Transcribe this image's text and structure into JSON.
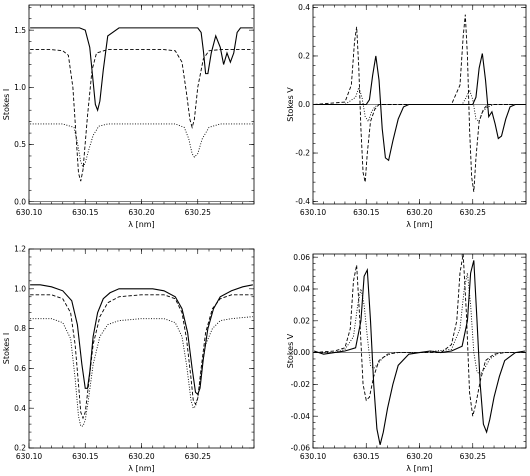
{
  "chart_data": [
    {
      "type": "line",
      "xlabel": "λ  [nm]",
      "ylabel": "Stokes I",
      "xlim": [
        630.1,
        630.3
      ],
      "ylim": [
        -0.02,
        1.72
      ],
      "xticks": [
        "630.10",
        "630.15",
        "630.20",
        "630.25"
      ],
      "xtick_values": [
        630.1,
        630.15,
        630.2,
        630.25
      ],
      "yticks": [
        "0.0",
        "0.5",
        "1.0",
        "1.5"
      ],
      "ytick_values": [
        0.0,
        0.5,
        1.0,
        1.5
      ],
      "grid": false,
      "series": [
        {
          "style": "solid",
          "x": [
            630.101,
            630.13,
            630.145,
            630.15,
            630.154,
            630.157,
            630.159,
            630.161,
            630.163,
            630.166,
            630.17,
            630.18,
            630.2,
            630.22,
            630.24,
            630.25,
            630.253,
            630.255,
            630.257,
            630.259,
            630.262,
            630.266,
            630.27,
            630.273,
            630.276,
            630.279,
            630.282,
            630.285,
            630.288,
            630.292,
            630.296,
            630.299
          ],
          "values": [
            1.52,
            1.52,
            1.52,
            1.5,
            1.35,
            1.05,
            0.85,
            0.8,
            0.88,
            1.15,
            1.45,
            1.52,
            1.52,
            1.52,
            1.52,
            1.52,
            1.48,
            1.32,
            1.12,
            1.12,
            1.3,
            1.45,
            1.35,
            1.2,
            1.3,
            1.22,
            1.3,
            1.48,
            1.52,
            1.52,
            1.52,
            1.52
          ]
        },
        {
          "style": "dashed",
          "x": [
            630.101,
            630.12,
            630.13,
            630.135,
            630.139,
            630.142,
            630.144,
            630.146,
            630.148,
            630.152,
            630.156,
            630.16,
            630.17,
            630.2,
            630.22,
            630.23,
            630.236,
            630.24,
            630.243,
            630.245,
            630.247,
            630.25,
            630.255,
            630.26,
            630.27,
            630.29,
            630.299
          ],
          "values": [
            1.33,
            1.33,
            1.32,
            1.28,
            1.0,
            0.55,
            0.25,
            0.18,
            0.28,
            0.75,
            1.15,
            1.3,
            1.33,
            1.33,
            1.33,
            1.32,
            1.22,
            0.95,
            0.72,
            0.65,
            0.72,
            1.0,
            1.25,
            1.32,
            1.33,
            1.33,
            1.33
          ]
        },
        {
          "style": "dotted",
          "x": [
            630.101,
            630.13,
            630.14,
            630.143,
            630.146,
            630.148,
            630.15,
            630.153,
            630.157,
            630.162,
            630.17,
            630.2,
            630.23,
            630.238,
            630.242,
            630.245,
            630.247,
            630.25,
            630.254,
            630.26,
            630.27,
            630.29,
            630.299
          ],
          "values": [
            0.68,
            0.68,
            0.65,
            0.52,
            0.35,
            0.3,
            0.34,
            0.45,
            0.58,
            0.66,
            0.68,
            0.68,
            0.68,
            0.65,
            0.55,
            0.42,
            0.39,
            0.42,
            0.55,
            0.65,
            0.68,
            0.68,
            0.68
          ]
        }
      ]
    },
    {
      "type": "line",
      "xlabel": "λ  [nm]",
      "ylabel": "Stokes V",
      "xlim": [
        630.1,
        630.3
      ],
      "ylim": [
        -0.41,
        0.41
      ],
      "xticks": [
        "630.10",
        "630.15",
        "630.20",
        "630.25"
      ],
      "xtick_values": [
        630.1,
        630.15,
        630.2,
        630.25
      ],
      "yticks": [
        "-0.4",
        "-0.2",
        "0.0",
        "0.2",
        "0.4"
      ],
      "ytick_values": [
        -0.4,
        -0.2,
        0.0,
        0.2,
        0.4
      ],
      "grid": false,
      "series": [
        {
          "style": "solid",
          "x": [
            630.101,
            630.15,
            630.153,
            630.156,
            630.159,
            630.162,
            630.165,
            630.168,
            630.171,
            630.175,
            630.18,
            630.185,
            630.19,
            630.24,
            630.25,
            630.253,
            630.256,
            630.259,
            630.262,
            630.265,
            630.268,
            630.271,
            630.274,
            630.277,
            630.281,
            630.285,
            630.29,
            630.299
          ],
          "values": [
            0.0,
            0.0,
            0.02,
            0.12,
            0.2,
            0.1,
            -0.1,
            -0.22,
            -0.23,
            -0.15,
            -0.06,
            -0.01,
            0.0,
            0.0,
            0.0,
            0.03,
            0.15,
            0.21,
            0.1,
            -0.05,
            -0.03,
            -0.08,
            -0.14,
            -0.13,
            -0.06,
            -0.01,
            0.0,
            0.0
          ]
        },
        {
          "style": "dashed",
          "x": [
            630.101,
            630.13,
            630.136,
            630.139,
            630.141,
            630.143,
            630.145,
            630.147,
            630.149,
            630.151,
            630.154,
            630.158,
            630.162,
            630.17,
            630.23,
            630.238,
            630.241,
            630.243,
            630.245,
            630.247,
            630.249,
            630.251,
            630.253,
            630.256,
            630.26,
            630.264,
            630.27,
            630.299
          ],
          "values": [
            0.0,
            0.01,
            0.08,
            0.26,
            0.32,
            0.15,
            -0.1,
            -0.28,
            -0.32,
            -0.2,
            -0.07,
            -0.02,
            0.0,
            0.0,
            0.0,
            0.08,
            0.28,
            0.37,
            0.2,
            -0.1,
            -0.3,
            -0.36,
            -0.22,
            -0.07,
            -0.02,
            0.0,
            0.0,
            0.0
          ]
        },
        {
          "style": "dotted",
          "x": [
            630.101,
            630.13,
            630.14,
            630.143,
            630.146,
            630.149,
            630.152,
            630.155,
            630.158,
            630.162,
            630.17,
            630.24,
            630.244,
            630.247,
            630.25,
            630.253,
            630.256,
            630.259,
            630.264,
            630.27,
            630.299
          ],
          "values": [
            0.0,
            0.0,
            0.03,
            0.07,
            0.03,
            -0.05,
            -0.07,
            -0.03,
            -0.01,
            0.0,
            0.0,
            0.0,
            0.03,
            0.06,
            0.02,
            -0.06,
            -0.07,
            -0.03,
            -0.01,
            0.0,
            0.0
          ]
        }
      ]
    },
    {
      "type": "line",
      "xlabel": "λ  [nm]",
      "ylabel": "Stokes I",
      "xlim": [
        630.1,
        630.3
      ],
      "ylim": [
        0.2,
        1.2
      ],
      "xticks": [
        "630.10",
        "630.15",
        "630.20",
        "630.25"
      ],
      "xtick_values": [
        630.1,
        630.15,
        630.2,
        630.25
      ],
      "yticks": [
        "0.2",
        "0.4",
        "0.6",
        "0.8",
        "1.0",
        "1.2"
      ],
      "ytick_values": [
        0.2,
        0.4,
        0.6,
        0.8,
        1.0,
        1.2
      ],
      "grid": false,
      "series": [
        {
          "style": "solid",
          "x": [
            630.101,
            630.11,
            630.12,
            630.13,
            630.138,
            630.143,
            630.147,
            630.15,
            630.152,
            630.154,
            630.157,
            630.161,
            630.166,
            630.172,
            630.18,
            630.19,
            630.2,
            630.21,
            630.22,
            630.23,
            630.236,
            630.241,
            630.245,
            630.248,
            630.25,
            630.252,
            630.255,
            630.259,
            630.264,
            630.27,
            630.28,
            630.29,
            630.299
          ],
          "values": [
            1.02,
            1.02,
            1.01,
            0.99,
            0.94,
            0.82,
            0.62,
            0.5,
            0.5,
            0.58,
            0.76,
            0.88,
            0.95,
            0.98,
            1.0,
            1.0,
            1.0,
            1.0,
            0.99,
            0.96,
            0.9,
            0.78,
            0.6,
            0.48,
            0.47,
            0.5,
            0.65,
            0.8,
            0.9,
            0.96,
            0.99,
            1.01,
            1.02
          ]
        },
        {
          "style": "dashed",
          "x": [
            630.101,
            630.12,
            630.13,
            630.137,
            630.141,
            630.144,
            630.146,
            630.148,
            630.15,
            630.153,
            630.157,
            630.163,
            630.17,
            630.18,
            630.2,
            630.22,
            630.23,
            630.236,
            630.24,
            630.244,
            630.246,
            630.248,
            630.25,
            630.253,
            630.257,
            630.263,
            630.27,
            630.28,
            630.299
          ],
          "values": [
            0.97,
            0.97,
            0.95,
            0.88,
            0.72,
            0.52,
            0.38,
            0.35,
            0.38,
            0.52,
            0.72,
            0.86,
            0.93,
            0.96,
            0.97,
            0.97,
            0.95,
            0.88,
            0.75,
            0.55,
            0.44,
            0.42,
            0.45,
            0.6,
            0.78,
            0.9,
            0.95,
            0.97,
            0.97
          ]
        },
        {
          "style": "dotted",
          "x": [
            630.101,
            630.12,
            630.13,
            630.137,
            630.141,
            630.144,
            630.146,
            630.148,
            630.15,
            630.153,
            630.157,
            630.163,
            630.17,
            630.18,
            630.2,
            630.22,
            630.23,
            630.236,
            630.24,
            630.244,
            630.246,
            630.248,
            630.25,
            630.253,
            630.257,
            630.263,
            630.27,
            630.28,
            630.299
          ],
          "values": [
            0.85,
            0.85,
            0.83,
            0.75,
            0.55,
            0.36,
            0.31,
            0.31,
            0.34,
            0.45,
            0.62,
            0.76,
            0.82,
            0.84,
            0.85,
            0.85,
            0.83,
            0.76,
            0.62,
            0.44,
            0.4,
            0.41,
            0.45,
            0.58,
            0.72,
            0.8,
            0.84,
            0.85,
            0.86
          ]
        }
      ]
    },
    {
      "type": "line",
      "xlabel": "λ  [nm]",
      "ylabel": "Stokes V",
      "xlim": [
        630.1,
        630.3
      ],
      "ylim": [
        -0.06,
        0.062
      ],
      "xticks": [
        "630.10",
        "630.15",
        "630.20",
        "630.25"
      ],
      "xtick_values": [
        630.1,
        630.15,
        630.2,
        630.25
      ],
      "yticks": [
        "-0.06",
        "-0.04",
        "-0.02",
        "0.00",
        "0.02",
        "0.04",
        "0.06"
      ],
      "ytick_values": [
        -0.06,
        -0.04,
        -0.02,
        0.0,
        0.02,
        0.04,
        0.06
      ],
      "grid": false,
      "series": [
        {
          "style": "solid",
          "x": [
            630.101,
            630.11,
            630.12,
            630.13,
            630.14,
            630.145,
            630.148,
            630.151,
            630.154,
            630.157,
            630.16,
            630.163,
            630.166,
            630.17,
            630.175,
            630.18,
            630.19,
            630.2,
            630.21,
            630.22,
            630.23,
            630.24,
            630.245,
            630.248,
            630.251,
            630.254,
            630.257,
            630.26,
            630.263,
            630.266,
            630.27,
            630.275,
            630.28,
            630.29,
            630.299
          ],
          "values": [
            0.001,
            -0.001,
            0.0,
            0.001,
            0.003,
            0.02,
            0.048,
            0.052,
            0.02,
            -0.02,
            -0.048,
            -0.058,
            -0.05,
            -0.035,
            -0.02,
            -0.008,
            -0.001,
            0.0,
            0.001,
            0.0,
            0.001,
            0.004,
            0.02,
            0.05,
            0.058,
            0.02,
            -0.02,
            -0.045,
            -0.05,
            -0.042,
            -0.028,
            -0.015,
            -0.005,
            0.0,
            0.001
          ]
        },
        {
          "style": "dashed",
          "x": [
            630.101,
            630.12,
            630.13,
            630.135,
            630.138,
            630.141,
            630.144,
            630.147,
            630.15,
            630.153,
            630.157,
            630.162,
            630.17,
            630.18,
            630.2,
            630.22,
            630.23,
            630.235,
            630.238,
            630.241,
            630.244,
            630.247,
            630.25,
            630.253,
            630.257,
            630.262,
            630.27,
            630.28,
            630.299
          ],
          "values": [
            0.0,
            0.001,
            0.003,
            0.015,
            0.045,
            0.055,
            0.02,
            -0.02,
            -0.03,
            -0.028,
            -0.015,
            -0.005,
            -0.001,
            0.0,
            0.0,
            0.0,
            0.005,
            0.02,
            0.05,
            0.062,
            0.025,
            -0.025,
            -0.04,
            -0.032,
            -0.018,
            -0.005,
            -0.001,
            0.0,
            0.0
          ]
        },
        {
          "style": "dotted",
          "x": [
            630.101,
            630.12,
            630.13,
            630.138,
            630.142,
            630.145,
            630.148,
            630.151,
            630.154,
            630.157,
            630.161,
            630.166,
            630.175,
            630.2,
            630.23,
            630.238,
            630.242,
            630.245,
            630.248,
            630.251,
            630.254,
            630.257,
            630.261,
            630.266,
            630.275,
            630.299
          ],
          "values": [
            0.0,
            0.0,
            0.002,
            0.01,
            0.03,
            0.04,
            0.03,
            0.01,
            -0.008,
            -0.01,
            -0.007,
            -0.003,
            0.0,
            0.0,
            0.002,
            0.015,
            0.04,
            0.05,
            0.03,
            0.0,
            -0.012,
            -0.014,
            -0.01,
            -0.004,
            0.0,
            0.0
          ]
        }
      ]
    }
  ]
}
